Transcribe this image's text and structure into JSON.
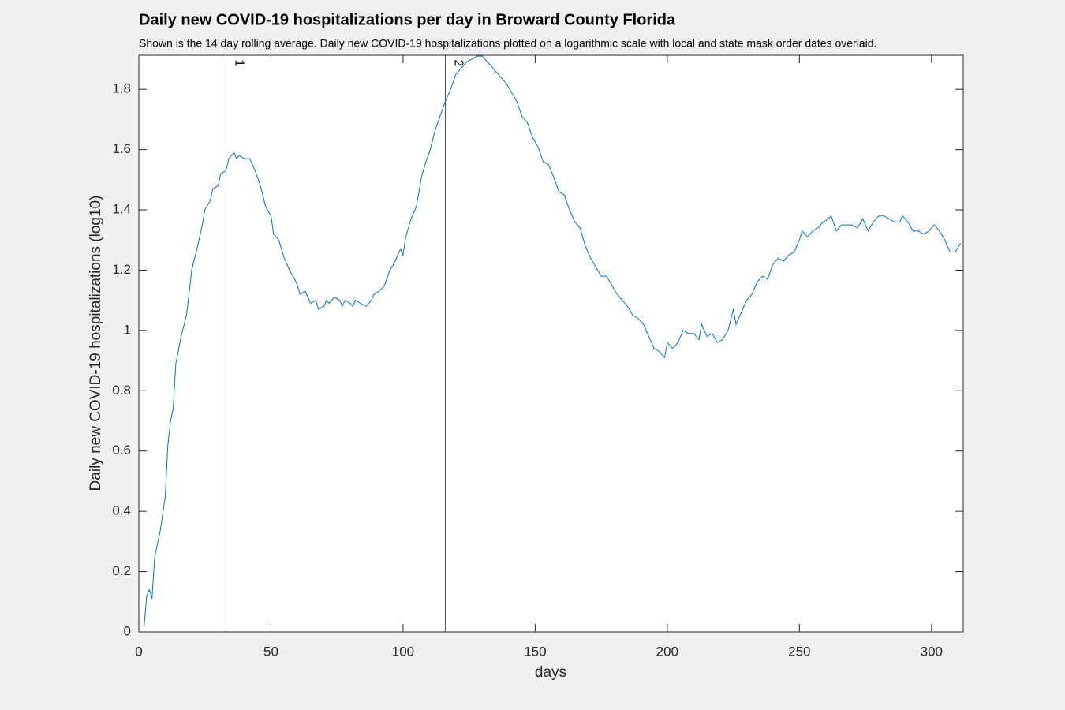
{
  "chart_data": {
    "type": "line",
    "title": "Daily new COVID-19 hospitalizations per day in Broward County Florida",
    "subtitle": "Shown is the 14 day rolling average. Daily new COVID-19 hospitalizations plotted on a logarithmic scale with local and state mask order dates overlaid.",
    "x_label": "days",
    "y_label": "Daily new COVID-19 hospitalizations (log10)",
    "color": "#0072bd",
    "x": [
      2,
      3,
      4,
      5,
      6,
      8,
      10,
      11,
      12,
      13,
      14,
      16,
      18,
      19,
      20,
      22,
      24,
      25,
      27,
      28,
      30,
      31,
      33,
      34,
      36,
      37,
      38,
      40,
      42,
      43,
      44,
      46,
      48,
      50,
      51,
      53,
      55,
      57,
      59,
      60,
      61,
      63,
      64,
      65,
      67,
      68,
      70,
      71,
      72,
      74,
      76,
      77,
      78,
      80,
      81,
      82,
      84,
      86,
      88,
      89,
      91,
      93,
      95,
      97,
      99,
      100,
      101,
      103,
      105,
      107,
      109,
      110,
      112,
      114,
      116,
      118,
      120,
      122,
      124,
      126,
      128,
      130,
      131,
      133,
      135,
      137,
      139,
      141,
      143,
      145,
      147,
      149,
      151,
      153,
      155,
      157,
      159,
      161,
      163,
      165,
      167,
      169,
      171,
      173,
      175,
      177,
      179,
      181,
      183,
      185,
      187,
      189,
      191,
      193,
      195,
      197,
      199,
      200,
      202,
      204,
      206,
      208,
      210,
      212,
      213,
      215,
      217,
      219,
      221,
      223,
      225,
      226,
      228,
      230,
      232,
      234,
      236,
      238,
      240,
      242,
      244,
      246,
      248,
      250,
      251,
      253,
      255,
      257,
      259,
      261,
      262,
      264,
      266,
      268,
      270,
      272,
      274,
      276,
      278,
      280,
      282,
      284,
      286,
      288,
      289,
      291,
      293,
      295,
      297,
      299,
      301,
      303,
      305,
      307,
      309,
      311
    ],
    "values": [
      0.02,
      0.12,
      0.14,
      0.11,
      0.25,
      0.33,
      0.45,
      0.62,
      0.7,
      0.74,
      0.89,
      0.98,
      1.05,
      1.12,
      1.2,
      1.27,
      1.35,
      1.4,
      1.43,
      1.47,
      1.48,
      1.52,
      1.53,
      1.57,
      1.59,
      1.57,
      1.58,
      1.57,
      1.57,
      1.55,
      1.53,
      1.48,
      1.41,
      1.38,
      1.32,
      1.3,
      1.24,
      1.2,
      1.17,
      1.15,
      1.12,
      1.13,
      1.11,
      1.09,
      1.1,
      1.07,
      1.08,
      1.1,
      1.09,
      1.11,
      1.1,
      1.08,
      1.1,
      1.09,
      1.08,
      1.1,
      1.09,
      1.08,
      1.1,
      1.12,
      1.13,
      1.15,
      1.2,
      1.23,
      1.27,
      1.25,
      1.31,
      1.37,
      1.41,
      1.51,
      1.57,
      1.59,
      1.66,
      1.71,
      1.76,
      1.8,
      1.85,
      1.87,
      1.89,
      1.9,
      1.91,
      1.91,
      1.9,
      1.88,
      1.86,
      1.84,
      1.82,
      1.79,
      1.76,
      1.71,
      1.69,
      1.64,
      1.61,
      1.56,
      1.55,
      1.51,
      1.46,
      1.45,
      1.4,
      1.36,
      1.34,
      1.28,
      1.24,
      1.21,
      1.18,
      1.18,
      1.15,
      1.12,
      1.1,
      1.08,
      1.05,
      1.04,
      1.02,
      0.98,
      0.94,
      0.93,
      0.91,
      0.96,
      0.94,
      0.96,
      1.0,
      0.99,
      0.99,
      0.97,
      1.02,
      0.98,
      0.99,
      0.96,
      0.97,
      1.0,
      1.07,
      1.02,
      1.06,
      1.1,
      1.12,
      1.16,
      1.18,
      1.17,
      1.22,
      1.24,
      1.23,
      1.25,
      1.26,
      1.3,
      1.33,
      1.31,
      1.33,
      1.34,
      1.36,
      1.37,
      1.38,
      1.33,
      1.35,
      1.35,
      1.35,
      1.34,
      1.37,
      1.33,
      1.36,
      1.38,
      1.38,
      1.37,
      1.36,
      1.36,
      1.38,
      1.36,
      1.33,
      1.33,
      1.32,
      1.33,
      1.35,
      1.33,
      1.3,
      1.26,
      1.26,
      1.29
    ],
    "markers": [
      {
        "x": 33,
        "label": "1"
      },
      {
        "x": 116,
        "label": "2"
      }
    ],
    "xlim": [
      0,
      312
    ],
    "xticks": [
      0,
      50,
      100,
      150,
      200,
      250,
      300
    ],
    "ylim": [
      0,
      1.913
    ],
    "yticks": [
      0,
      0.2,
      0.4,
      0.6,
      0.8,
      1,
      1.2,
      1.4,
      1.6,
      1.8
    ]
  }
}
